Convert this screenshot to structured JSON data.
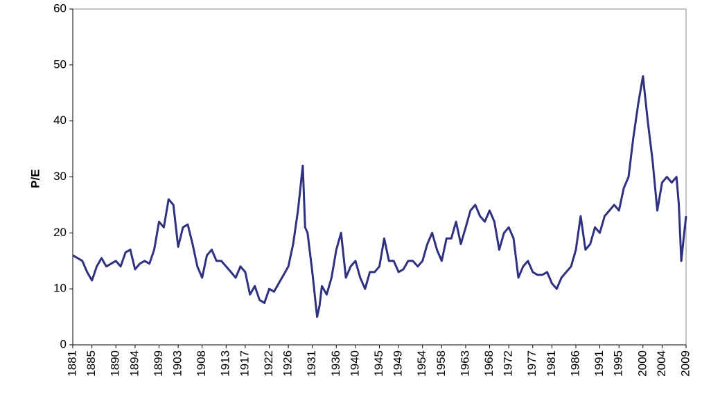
{
  "chart_data": {
    "type": "line",
    "y_label": "P/E",
    "x": [
      1881,
      1882,
      1883,
      1884,
      1885,
      1886,
      1887,
      1888,
      1889,
      1890,
      1891,
      1892,
      1893,
      1894,
      1895,
      1896,
      1897,
      1898,
      1899,
      1900,
      1901,
      1902,
      1903,
      1904,
      1905,
      1906,
      1907,
      1908,
      1909,
      1910,
      1911,
      1912,
      1913,
      1914,
      1915,
      1916,
      1917,
      1918,
      1919,
      1920,
      1921,
      1922,
      1923,
      1924,
      1925,
      1926,
      1927,
      1928,
      1929,
      1929.5,
      1930,
      1931,
      1932,
      1932.5,
      1933,
      1934,
      1935,
      1936,
      1937,
      1938,
      1939,
      1940,
      1941,
      1942,
      1943,
      1944,
      1945,
      1946,
      1947,
      1948,
      1949,
      1950,
      1951,
      1952,
      1953,
      1954,
      1955,
      1956,
      1957,
      1958,
      1959,
      1960,
      1961,
      1962,
      1963,
      1964,
      1965,
      1966,
      1967,
      1968,
      1969,
      1970,
      1971,
      1972,
      1973,
      1974,
      1975,
      1976,
      1977,
      1978,
      1979,
      1980,
      1981,
      1982,
      1983,
      1984,
      1985,
      1986,
      1987,
      1988,
      1989,
      1990,
      1991,
      1992,
      1993,
      1994,
      1995,
      1996,
      1997,
      1998,
      1999,
      2000,
      2001,
      2002,
      2003,
      2004,
      2005,
      2006,
      2007,
      2007.5,
      2008,
      2008.5,
      2009
    ],
    "series": [
      {
        "name": "P/E",
        "color": "#2e3080",
        "values": [
          16,
          15.5,
          15,
          13,
          11.5,
          14,
          15.5,
          14,
          14.5,
          15,
          14,
          16.5,
          17,
          13.5,
          14.5,
          15,
          14.5,
          17,
          22,
          21,
          26,
          25,
          17.5,
          21,
          21.5,
          18,
          14,
          12,
          16,
          17,
          15,
          15,
          14,
          13,
          12,
          14,
          13,
          9,
          10.5,
          8,
          7.5,
          10,
          9.5,
          11,
          12.5,
          14,
          18,
          24,
          32,
          21,
          20,
          13,
          5,
          7,
          10.5,
          9,
          12,
          17,
          20,
          12,
          14,
          15,
          12,
          10,
          13,
          13,
          14,
          19,
          15,
          15,
          13,
          13.5,
          15,
          15,
          14,
          15,
          18,
          20,
          17,
          15,
          19,
          19,
          22,
          18,
          21,
          24,
          25,
          23,
          22,
          24,
          22,
          17,
          20,
          21,
          19,
          12,
          14,
          15,
          13,
          12.5,
          12.5,
          13,
          11,
          10,
          12,
          13,
          14,
          17,
          23,
          17,
          18,
          21,
          20,
          23,
          24,
          25,
          24,
          28,
          30,
          37,
          43,
          48,
          40,
          33,
          24,
          29,
          30,
          29,
          30,
          25,
          15,
          19,
          23
        ]
      }
    ],
    "xlim": [
      1881,
      2009
    ],
    "ylim": [
      0,
      60
    ],
    "xticks": [
      1881,
      1885,
      1890,
      1894,
      1899,
      1903,
      1908,
      1913,
      1917,
      1922,
      1926,
      1931,
      1936,
      1940,
      1945,
      1949,
      1954,
      1958,
      1963,
      1968,
      1972,
      1977,
      1981,
      1986,
      1991,
      1995,
      2000,
      2004,
      2009
    ],
    "yticks": [
      0,
      10,
      20,
      30,
      40,
      50,
      60
    ]
  }
}
